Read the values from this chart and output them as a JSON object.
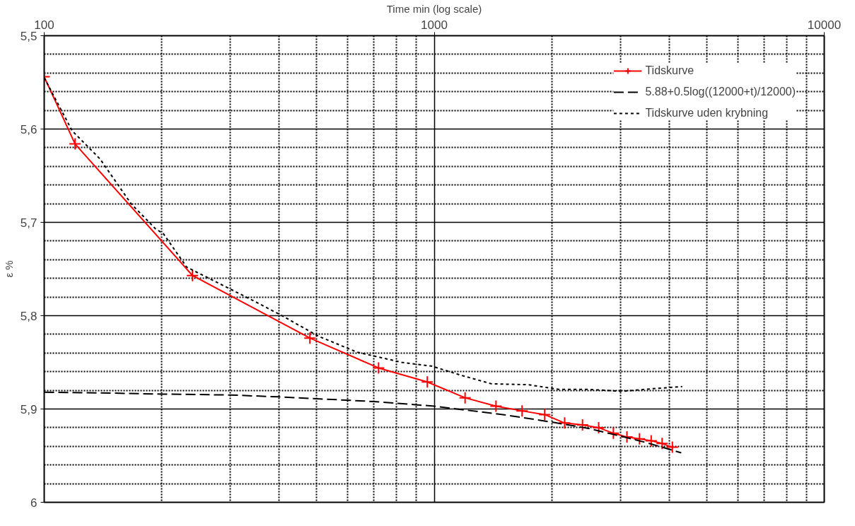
{
  "chart_data": {
    "type": "line",
    "xlabel": "Time min (log scale)",
    "ylabel": "ε %",
    "log": "x",
    "xlim": [
      100,
      10000
    ],
    "xticks": [
      100,
      1000,
      10000
    ],
    "ylim": [
      6,
      5.5
    ],
    "yticks": [
      {
        "value": 5.5,
        "label": "5,5"
      },
      {
        "value": 5.6,
        "label": "5,6"
      },
      {
        "value": 5.7,
        "label": "5,7"
      },
      {
        "value": 5.8,
        "label": "5,8"
      },
      {
        "value": 5.9,
        "label": "5,9"
      },
      {
        "value": 6,
        "label": "6"
      }
    ],
    "grid": true,
    "legend": "top right",
    "series": [
      {
        "name": "Tidskurve",
        "color": "#ff0000",
        "marker": "cross",
        "line_style": "solid",
        "x": [
          100,
          120,
          240,
          480,
          720,
          960,
          1200,
          1440,
          1680,
          1920,
          2160,
          2400,
          2640,
          2880,
          3120,
          3360,
          3600,
          3840,
          4080
        ],
        "values": [
          5.544,
          5.616,
          5.757,
          5.824,
          5.856,
          5.871,
          5.888,
          5.897,
          5.902,
          5.906,
          5.915,
          5.917,
          5.92,
          5.926,
          5.93,
          5.932,
          5.934,
          5.937,
          5.941
        ]
      },
      {
        "name": "5.88+0.5log((12000+t)/12000)",
        "color": "#000000",
        "marker": "none",
        "line_style": "dashed",
        "x": [
          100,
          150,
          200,
          300,
          400,
          500,
          700,
          1000,
          1500,
          2000,
          2500,
          3000,
          3500,
          4300
        ],
        "values": [
          5.882,
          5.883,
          5.884,
          5.885,
          5.887,
          5.889,
          5.892,
          5.897,
          5.906,
          5.914,
          5.921,
          5.929,
          5.936,
          5.947
        ]
      },
      {
        "name": "Tidskurve uden krybning",
        "color": "#000000",
        "marker": "none",
        "line_style": "dotted",
        "x": [
          100,
          118,
          139,
          167,
          193,
          202,
          232,
          344,
          407,
          505,
          633,
          825,
          984,
          1175,
          1402,
          1748,
          2084,
          2487,
          3036,
          3704,
          4325
        ],
        "values": [
          5.545,
          5.602,
          5.632,
          5.68,
          5.707,
          5.712,
          5.748,
          5.784,
          5.8,
          5.822,
          5.839,
          5.85,
          5.854,
          5.864,
          5.873,
          5.874,
          5.879,
          5.879,
          5.881,
          5.878,
          5.876
        ]
      }
    ]
  }
}
